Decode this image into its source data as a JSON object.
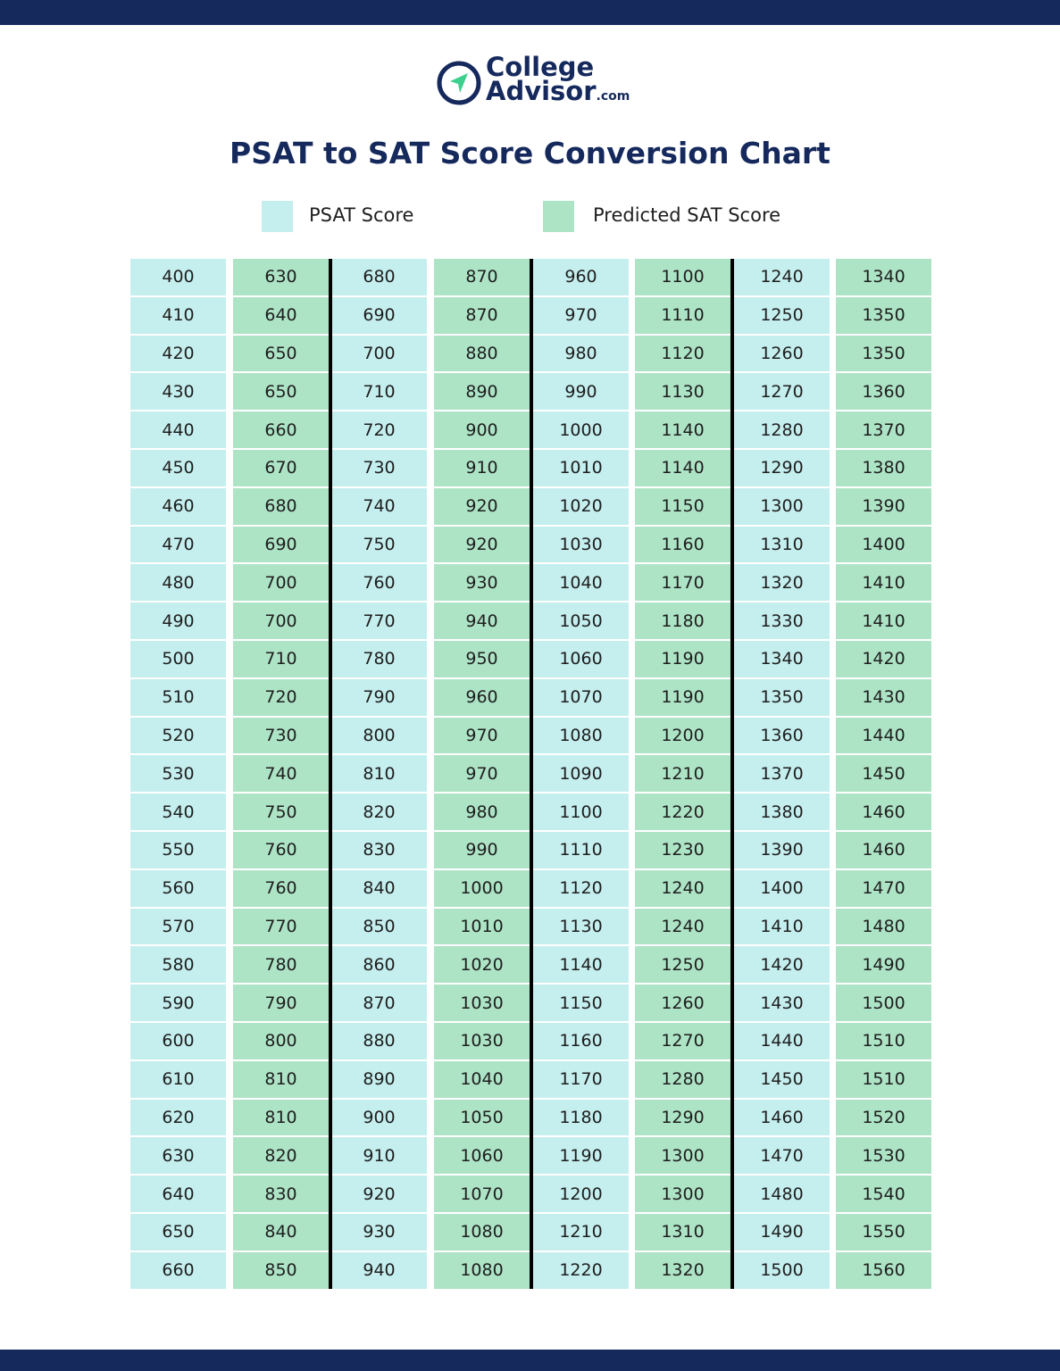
{
  "logo": {
    "line1": "College",
    "line2": "Advisor",
    "suffix": ".com"
  },
  "title": "PSAT to SAT Score Conversion Chart",
  "legend": [
    {
      "label": "PSAT Score",
      "color": "#c5eeee"
    },
    {
      "label": "Predicted SAT Score",
      "color": "#ade4c6"
    }
  ],
  "table": {
    "rows": [
      [
        400,
        630,
        680,
        870,
        960,
        1100,
        1240,
        1340
      ],
      [
        410,
        640,
        690,
        870,
        970,
        1110,
        1250,
        1350
      ],
      [
        420,
        650,
        700,
        880,
        980,
        1120,
        1260,
        1350
      ],
      [
        430,
        650,
        710,
        890,
        990,
        1130,
        1270,
        1360
      ],
      [
        440,
        660,
        720,
        900,
        1000,
        1140,
        1280,
        1370
      ],
      [
        450,
        670,
        730,
        910,
        1010,
        1140,
        1290,
        1380
      ],
      [
        460,
        680,
        740,
        920,
        1020,
        1150,
        1300,
        1390
      ],
      [
        470,
        690,
        750,
        920,
        1030,
        1160,
        1310,
        1400
      ],
      [
        480,
        700,
        760,
        930,
        1040,
        1170,
        1320,
        1410
      ],
      [
        490,
        700,
        770,
        940,
        1050,
        1180,
        1330,
        1410
      ],
      [
        500,
        710,
        780,
        950,
        1060,
        1190,
        1340,
        1420
      ],
      [
        510,
        720,
        790,
        960,
        1070,
        1190,
        1350,
        1430
      ],
      [
        520,
        730,
        800,
        970,
        1080,
        1200,
        1360,
        1440
      ],
      [
        530,
        740,
        810,
        970,
        1090,
        1210,
        1370,
        1450
      ],
      [
        540,
        750,
        820,
        980,
        1100,
        1220,
        1380,
        1460
      ],
      [
        550,
        760,
        830,
        990,
        1110,
        1230,
        1390,
        1460
      ],
      [
        560,
        760,
        840,
        1000,
        1120,
        1240,
        1400,
        1470
      ],
      [
        570,
        770,
        850,
        1010,
        1130,
        1240,
        1410,
        1480
      ],
      [
        580,
        780,
        860,
        1020,
        1140,
        1250,
        1420,
        1490
      ],
      [
        590,
        790,
        870,
        1030,
        1150,
        1260,
        1430,
        1500
      ],
      [
        600,
        800,
        880,
        1030,
        1160,
        1270,
        1440,
        1510
      ],
      [
        610,
        810,
        890,
        1040,
        1170,
        1280,
        1450,
        1510
      ],
      [
        620,
        810,
        900,
        1050,
        1180,
        1290,
        1460,
        1520
      ],
      [
        630,
        820,
        910,
        1060,
        1190,
        1300,
        1470,
        1530
      ],
      [
        640,
        830,
        920,
        1070,
        1200,
        1300,
        1480,
        1540
      ],
      [
        650,
        840,
        930,
        1080,
        1210,
        1310,
        1490,
        1550
      ],
      [
        660,
        850,
        940,
        1080,
        1220,
        1320,
        1500,
        1560
      ]
    ]
  }
}
